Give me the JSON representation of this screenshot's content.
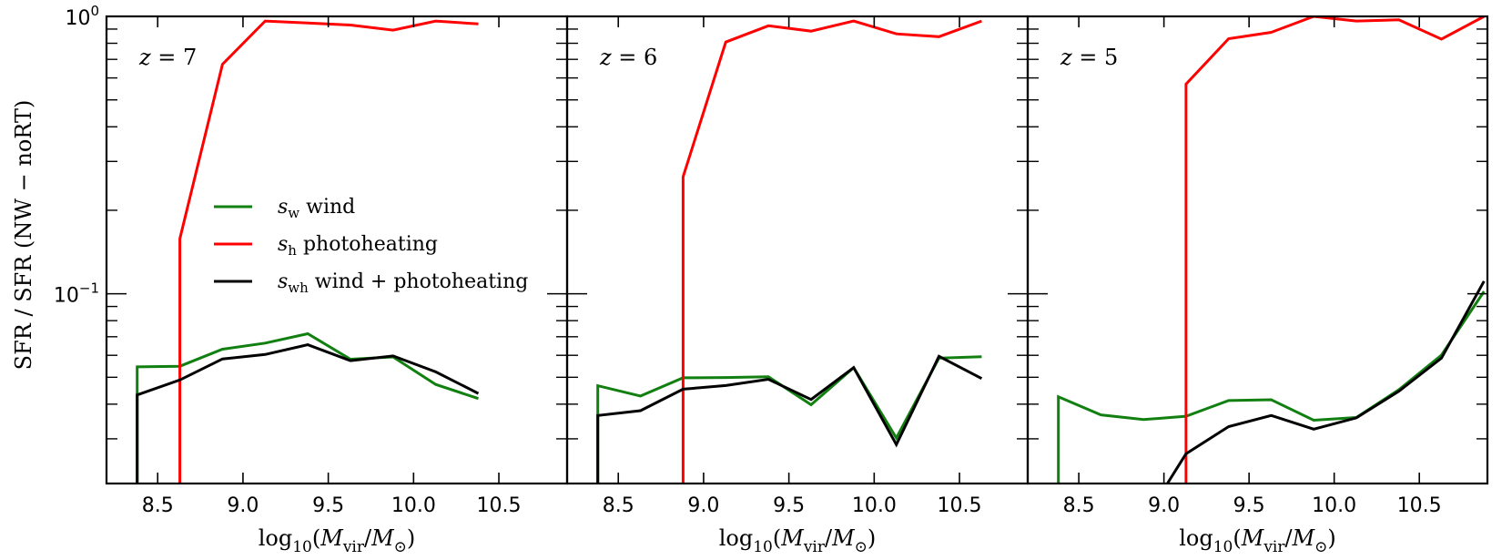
{
  "chart_data": {
    "type": "line",
    "yscale": "log",
    "ylim": [
      0.0207,
      1.0
    ],
    "xlim": [
      8.2,
      10.9
    ],
    "ylabel": "SFR / SFR (NW − noRT)",
    "xlabel_prefix": "log",
    "xlabel_sub10": "10",
    "xlabel_body": "(M",
    "xlabel_vir": "vir",
    "xlabel_slash": "/M",
    "xlabel_sun": "⊙",
    "xlabel_close": ")",
    "xticks": [
      8.5,
      9.0,
      9.5,
      10.0,
      10.5
    ],
    "xtick_labels": [
      "8.5",
      "9.0",
      "9.5",
      "10.0",
      "10.5"
    ],
    "ytick_labels": [
      {
        "base": "10",
        "exp": "0",
        "value": 1.0
      },
      {
        "base": "10",
        "exp": "−1",
        "value": 0.1
      }
    ],
    "colors": {
      "wind": "#118011",
      "photoheating": "#ff0000",
      "both": "#000000"
    },
    "legend": [
      {
        "key": "wind",
        "sym": "s",
        "sub": "w",
        "text": " wind"
      },
      {
        "key": "photoheating",
        "sym": "s",
        "sub": "h",
        "text": " photoheating"
      },
      {
        "key": "both",
        "sym": "s",
        "sub": "wh",
        "text": " wind + photoheating"
      }
    ],
    "panels": [
      {
        "label": "z = 7",
        "series": [
          {
            "name": "s_w wind",
            "key": "wind",
            "x": [
              8.38,
              8.38,
              8.63,
              8.88,
              9.13,
              9.38,
              9.63,
              9.88,
              10.13,
              10.38
            ],
            "y": [
              0.0207,
              0.0545,
              0.0548,
              0.0631,
              0.0664,
              0.0718,
              0.0581,
              0.0592,
              0.0471,
              0.0419
            ]
          },
          {
            "name": "s_h photoheating",
            "key": "photoheating",
            "x": [
              8.63,
              8.63,
              8.88,
              9.13,
              9.38,
              9.63,
              9.88,
              10.13,
              10.38
            ],
            "y": [
              0.0207,
              0.158,
              0.672,
              0.962,
              0.946,
              0.931,
              0.892,
              0.962,
              0.939
            ]
          },
          {
            "name": "s_wh wind+photoheating",
            "key": "both",
            "x": [
              8.38,
              8.38,
              8.63,
              8.88,
              9.13,
              9.38,
              9.63,
              9.88,
              10.13,
              10.38
            ],
            "y": [
              0.0207,
              0.0432,
              0.0489,
              0.0582,
              0.0604,
              0.0655,
              0.0574,
              0.0597,
              0.0523,
              0.0437
            ]
          }
        ]
      },
      {
        "label": "z = 6",
        "series": [
          {
            "name": "s_w wind",
            "key": "wind",
            "x": [
              8.38,
              8.38,
              8.63,
              8.88,
              9.13,
              9.38,
              9.63,
              9.88,
              10.13,
              10.38,
              10.63
            ],
            "y": [
              0.0207,
              0.0466,
              0.0428,
              0.0498,
              0.0499,
              0.0502,
              0.0398,
              0.0542,
              0.0302,
              0.0586,
              0.0593
            ]
          },
          {
            "name": "s_h photoheating",
            "key": "photoheating",
            "x": [
              8.88,
              8.88,
              9.13,
              9.38,
              9.63,
              9.88,
              10.13,
              10.38,
              10.63
            ],
            "y": [
              0.0207,
              0.264,
              0.808,
              0.925,
              0.885,
              0.962,
              0.865,
              0.845,
              0.962
            ]
          },
          {
            "name": "s_wh wind+photoheating",
            "key": "both",
            "x": [
              8.38,
              8.38,
              8.63,
              8.88,
              9.13,
              9.38,
              9.63,
              9.88,
              10.13,
              10.38,
              10.63
            ],
            "y": [
              0.0207,
              0.0364,
              0.0379,
              0.0453,
              0.0467,
              0.0492,
              0.0416,
              0.0542,
              0.0286,
              0.0595,
              0.0495
            ]
          }
        ]
      },
      {
        "label": "z = 5",
        "series": [
          {
            "name": "s_w wind",
            "key": "wind",
            "x": [
              8.38,
              8.38,
              8.63,
              8.88,
              9.13,
              9.38,
              9.63,
              9.88,
              10.13,
              10.38,
              10.63,
              10.88
            ],
            "y": [
              0.0207,
              0.0425,
              0.0366,
              0.0352,
              0.0362,
              0.0412,
              0.0415,
              0.035,
              0.0358,
              0.0451,
              0.0601,
              0.102
            ]
          },
          {
            "name": "s_h photoheating",
            "key": "photoheating",
            "x": [
              9.13,
              9.13,
              9.38,
              9.63,
              9.88,
              10.13,
              10.38,
              10.63,
              10.88
            ],
            "y": [
              0.0207,
              0.57,
              0.831,
              0.876,
              1.0,
              0.962,
              0.972,
              0.828,
              1.0
            ]
          },
          {
            "name": "s_wh wind+photoheating",
            "key": "both",
            "x": [
              9.02,
              9.13,
              9.38,
              9.63,
              9.88,
              10.13,
              10.38,
              10.63,
              10.88
            ],
            "y": [
              0.0207,
              0.0265,
              0.0332,
              0.0364,
              0.0325,
              0.0357,
              0.0445,
              0.0586,
              0.111
            ]
          }
        ]
      }
    ]
  }
}
